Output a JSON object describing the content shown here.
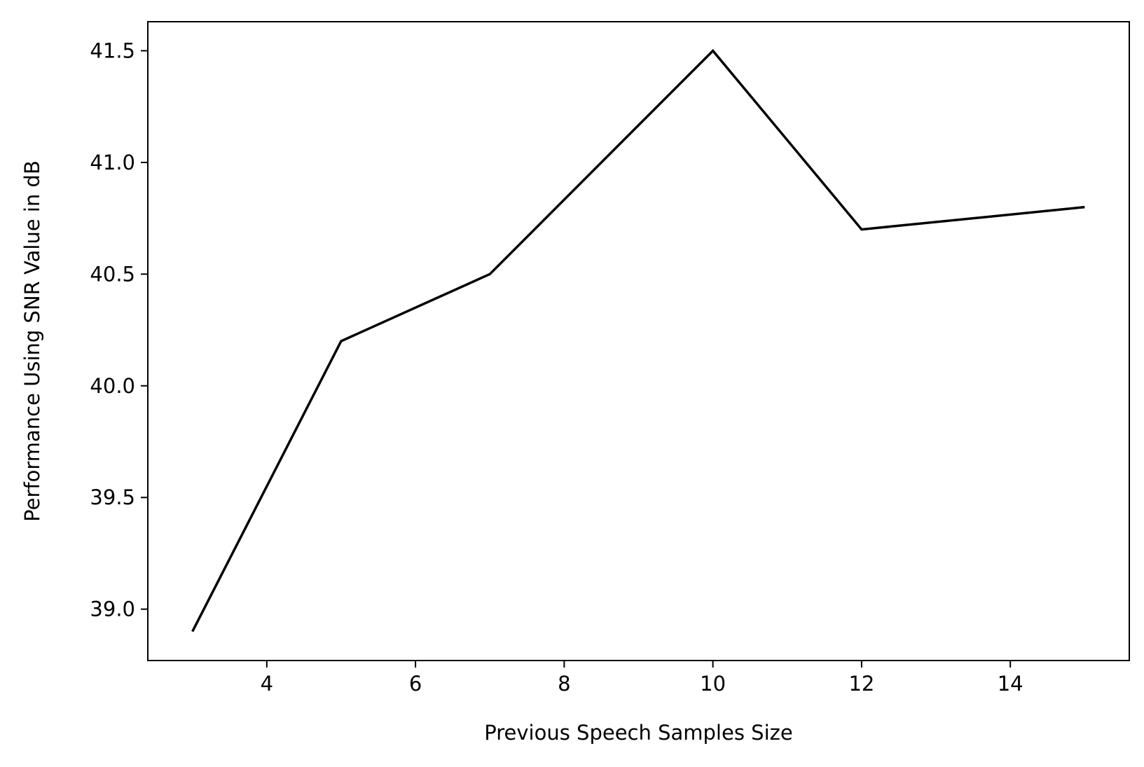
{
  "chart_data": {
    "type": "line",
    "title": "",
    "xlabel": "Previous Speech Samples Size",
    "ylabel": "Performance Using SNR Value in dB",
    "x": [
      3,
      5,
      7,
      10,
      12,
      15
    ],
    "series": [
      {
        "values": [
          38.9,
          40.2,
          40.5,
          41.5,
          40.7,
          40.8
        ]
      }
    ],
    "xlim": [
      2.4,
      15.6
    ],
    "ylim": [
      38.77,
      41.63
    ],
    "xticks": [
      4,
      6,
      8,
      10,
      12,
      14
    ],
    "xtick_labels": [
      "4",
      "6",
      "8",
      "10",
      "12",
      "14"
    ],
    "yticks": [
      39.0,
      39.5,
      40.0,
      40.5,
      41.0,
      41.5
    ],
    "ytick_labels": [
      "39.0",
      "39.5",
      "40.0",
      "40.5",
      "41.0",
      "41.5"
    ],
    "grid": false,
    "legend": "none",
    "line_color": "#000000"
  }
}
